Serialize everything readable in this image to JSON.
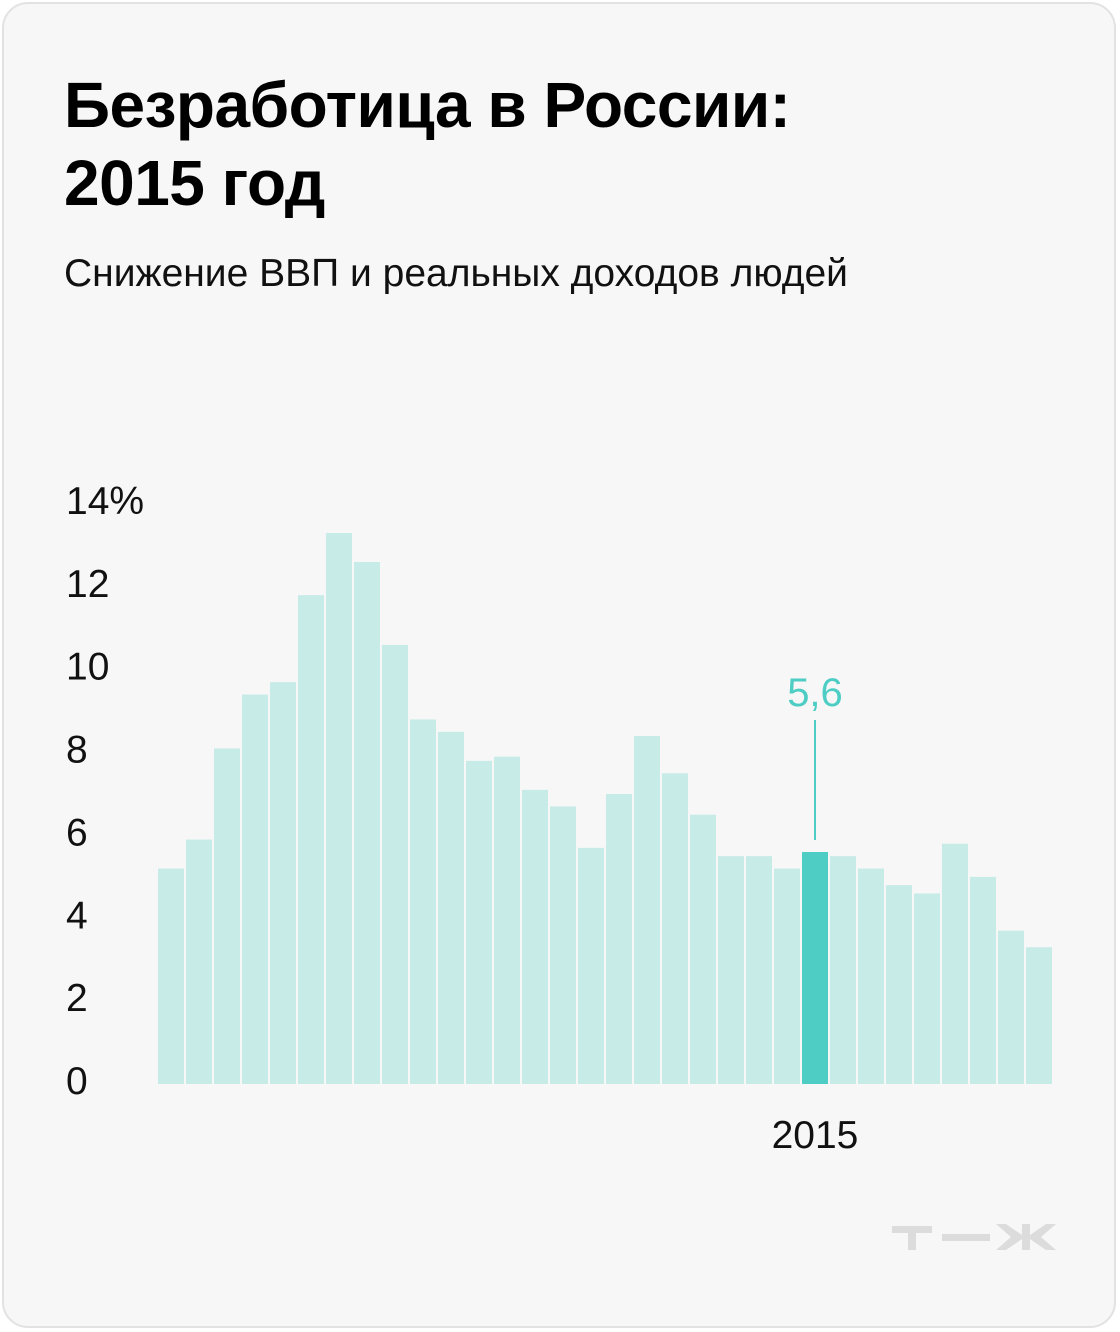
{
  "title_line1": "Безработица в России:",
  "title_line2": "2015 год",
  "subtitle": "Снижение ВВП и реальных доходов людей",
  "colors": {
    "bar": "#c7ebe7",
    "highlight": "#4ecdc4",
    "background": "#f7f7f7"
  },
  "logo": {
    "icon": "tzh-logo-icon",
    "text": "т—ж"
  },
  "chart_data": {
    "type": "bar",
    "title": "Безработица в России: 2015 год",
    "subtitle": "Снижение ВВП и реальных доходов людей",
    "y_ticks": [
      "0",
      "2",
      "4",
      "6",
      "8",
      "10",
      "12",
      "14%"
    ],
    "y_tick_values": [
      0,
      2,
      4,
      6,
      8,
      10,
      12,
      14
    ],
    "ylim": [
      0,
      14
    ],
    "grid": false,
    "values": [
      5.2,
      5.9,
      8.1,
      9.4,
      9.7,
      11.8,
      13.3,
      12.6,
      10.6,
      8.8,
      8.5,
      7.8,
      7.9,
      7.1,
      6.7,
      5.7,
      7.0,
      8.4,
      7.5,
      6.5,
      5.5,
      5.5,
      5.2,
      5.6,
      5.5,
      5.2,
      4.8,
      4.6,
      5.8,
      5.0,
      3.7,
      3.3
    ],
    "highlight_index": 23,
    "highlight_label": "5,6",
    "x_label": "2015"
  }
}
